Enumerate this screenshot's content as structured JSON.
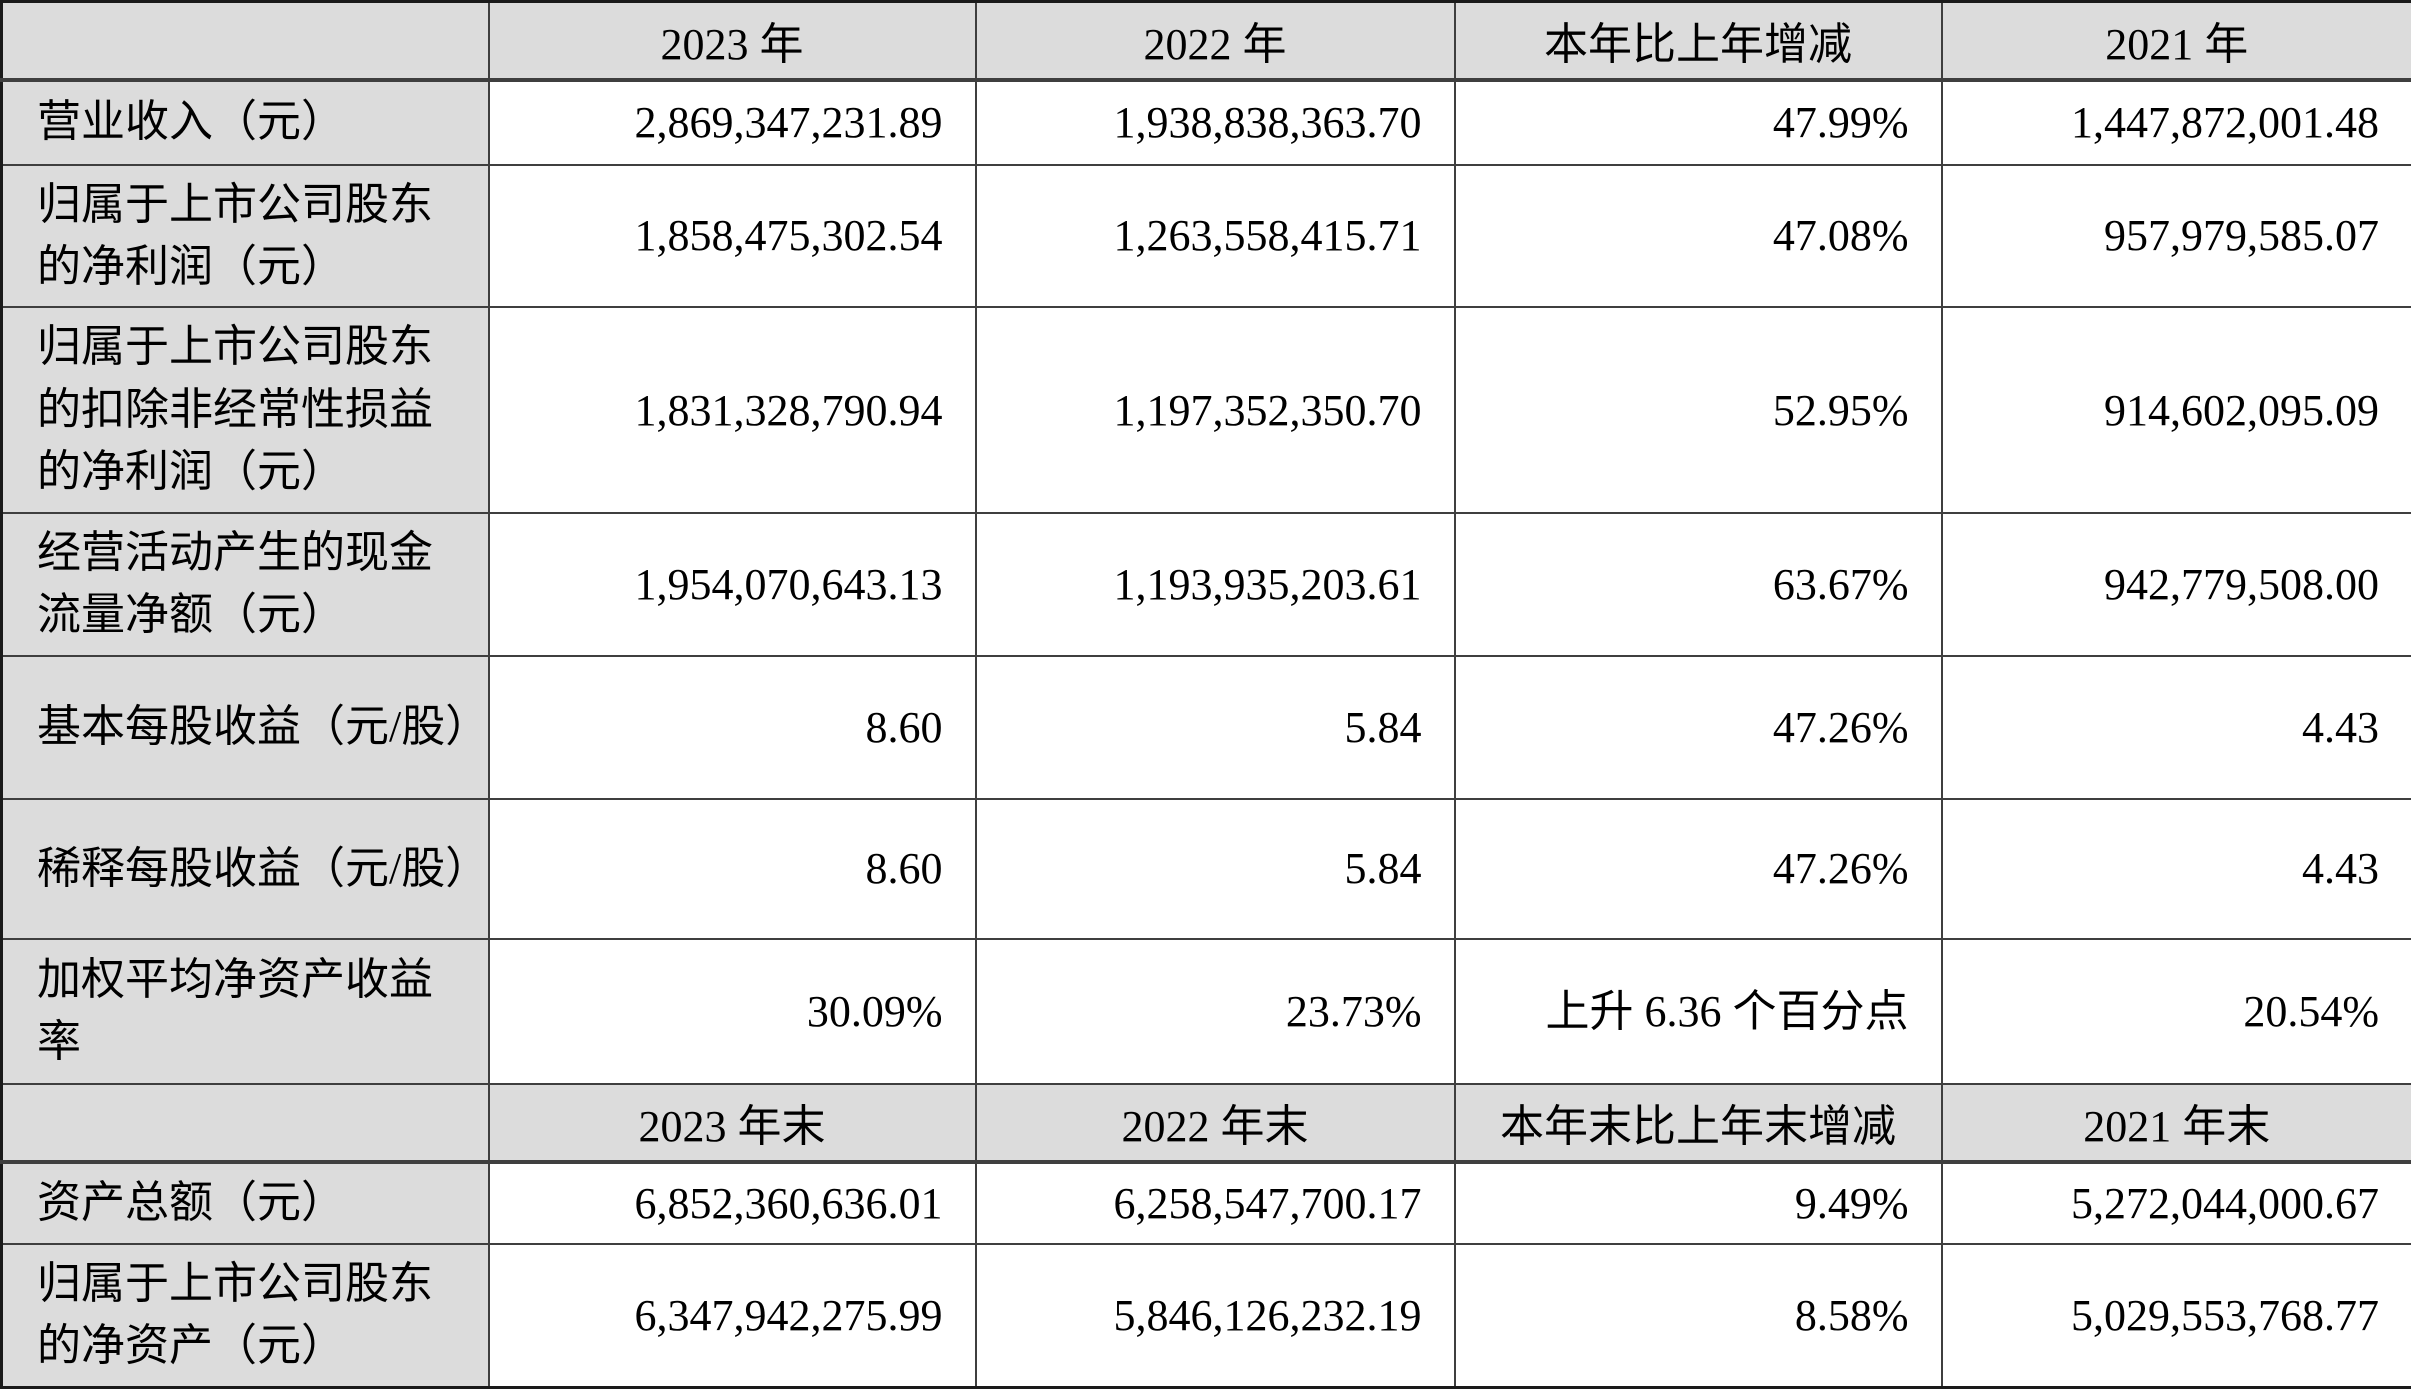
{
  "colors": {
    "header_bg": "#dcdcdc",
    "label_bg": "#dcdcdc",
    "value_bg": "#ffffff",
    "border": "#3f3f3f",
    "text": "#000000"
  },
  "table": {
    "section1": {
      "headers": [
        "",
        "2023 年",
        "2022 年",
        "本年比上年增减",
        "2021 年"
      ],
      "rows": [
        {
          "label": "营业收入（元）",
          "values": [
            "2,869,347,231.89",
            "1,938,838,363.70",
            "47.99%",
            "1,447,872,001.48"
          ]
        },
        {
          "label": "归属于上市公司股东的净利润（元）",
          "values": [
            "1,858,475,302.54",
            "1,263,558,415.71",
            "47.08%",
            "957,979,585.07"
          ]
        },
        {
          "label": "归属于上市公司股东的扣除非经常性损益的净利润（元）",
          "values": [
            "1,831,328,790.94",
            "1,197,352,350.70",
            "52.95%",
            "914,602,095.09"
          ]
        },
        {
          "label": "经营活动产生的现金流量净额（元）",
          "values": [
            "1,954,070,643.13",
            "1,193,935,203.61",
            "63.67%",
            "942,779,508.00"
          ]
        },
        {
          "label": "基本每股收益（元/股）",
          "values": [
            "8.60",
            "5.84",
            "47.26%",
            "4.43"
          ]
        },
        {
          "label": "稀释每股收益（元/股）",
          "values": [
            "8.60",
            "5.84",
            "47.26%",
            "4.43"
          ]
        },
        {
          "label": "加权平均净资产收益率",
          "values": [
            "30.09%",
            "23.73%",
            "上升 6.36 个百分点",
            "20.54%"
          ]
        }
      ]
    },
    "section2": {
      "headers": [
        "",
        "2023 年末",
        "2022 年末",
        "本年末比上年末增减",
        "2021 年末"
      ],
      "rows": [
        {
          "label": "资产总额（元）",
          "values": [
            "6,852,360,636.01",
            "6,258,547,700.17",
            "9.49%",
            "5,272,044,000.67"
          ]
        },
        {
          "label": "归属于上市公司股东的净资产（元）",
          "values": [
            "6,347,942,275.99",
            "5,846,126,232.19",
            "8.58%",
            "5,029,553,768.77"
          ]
        }
      ]
    }
  }
}
